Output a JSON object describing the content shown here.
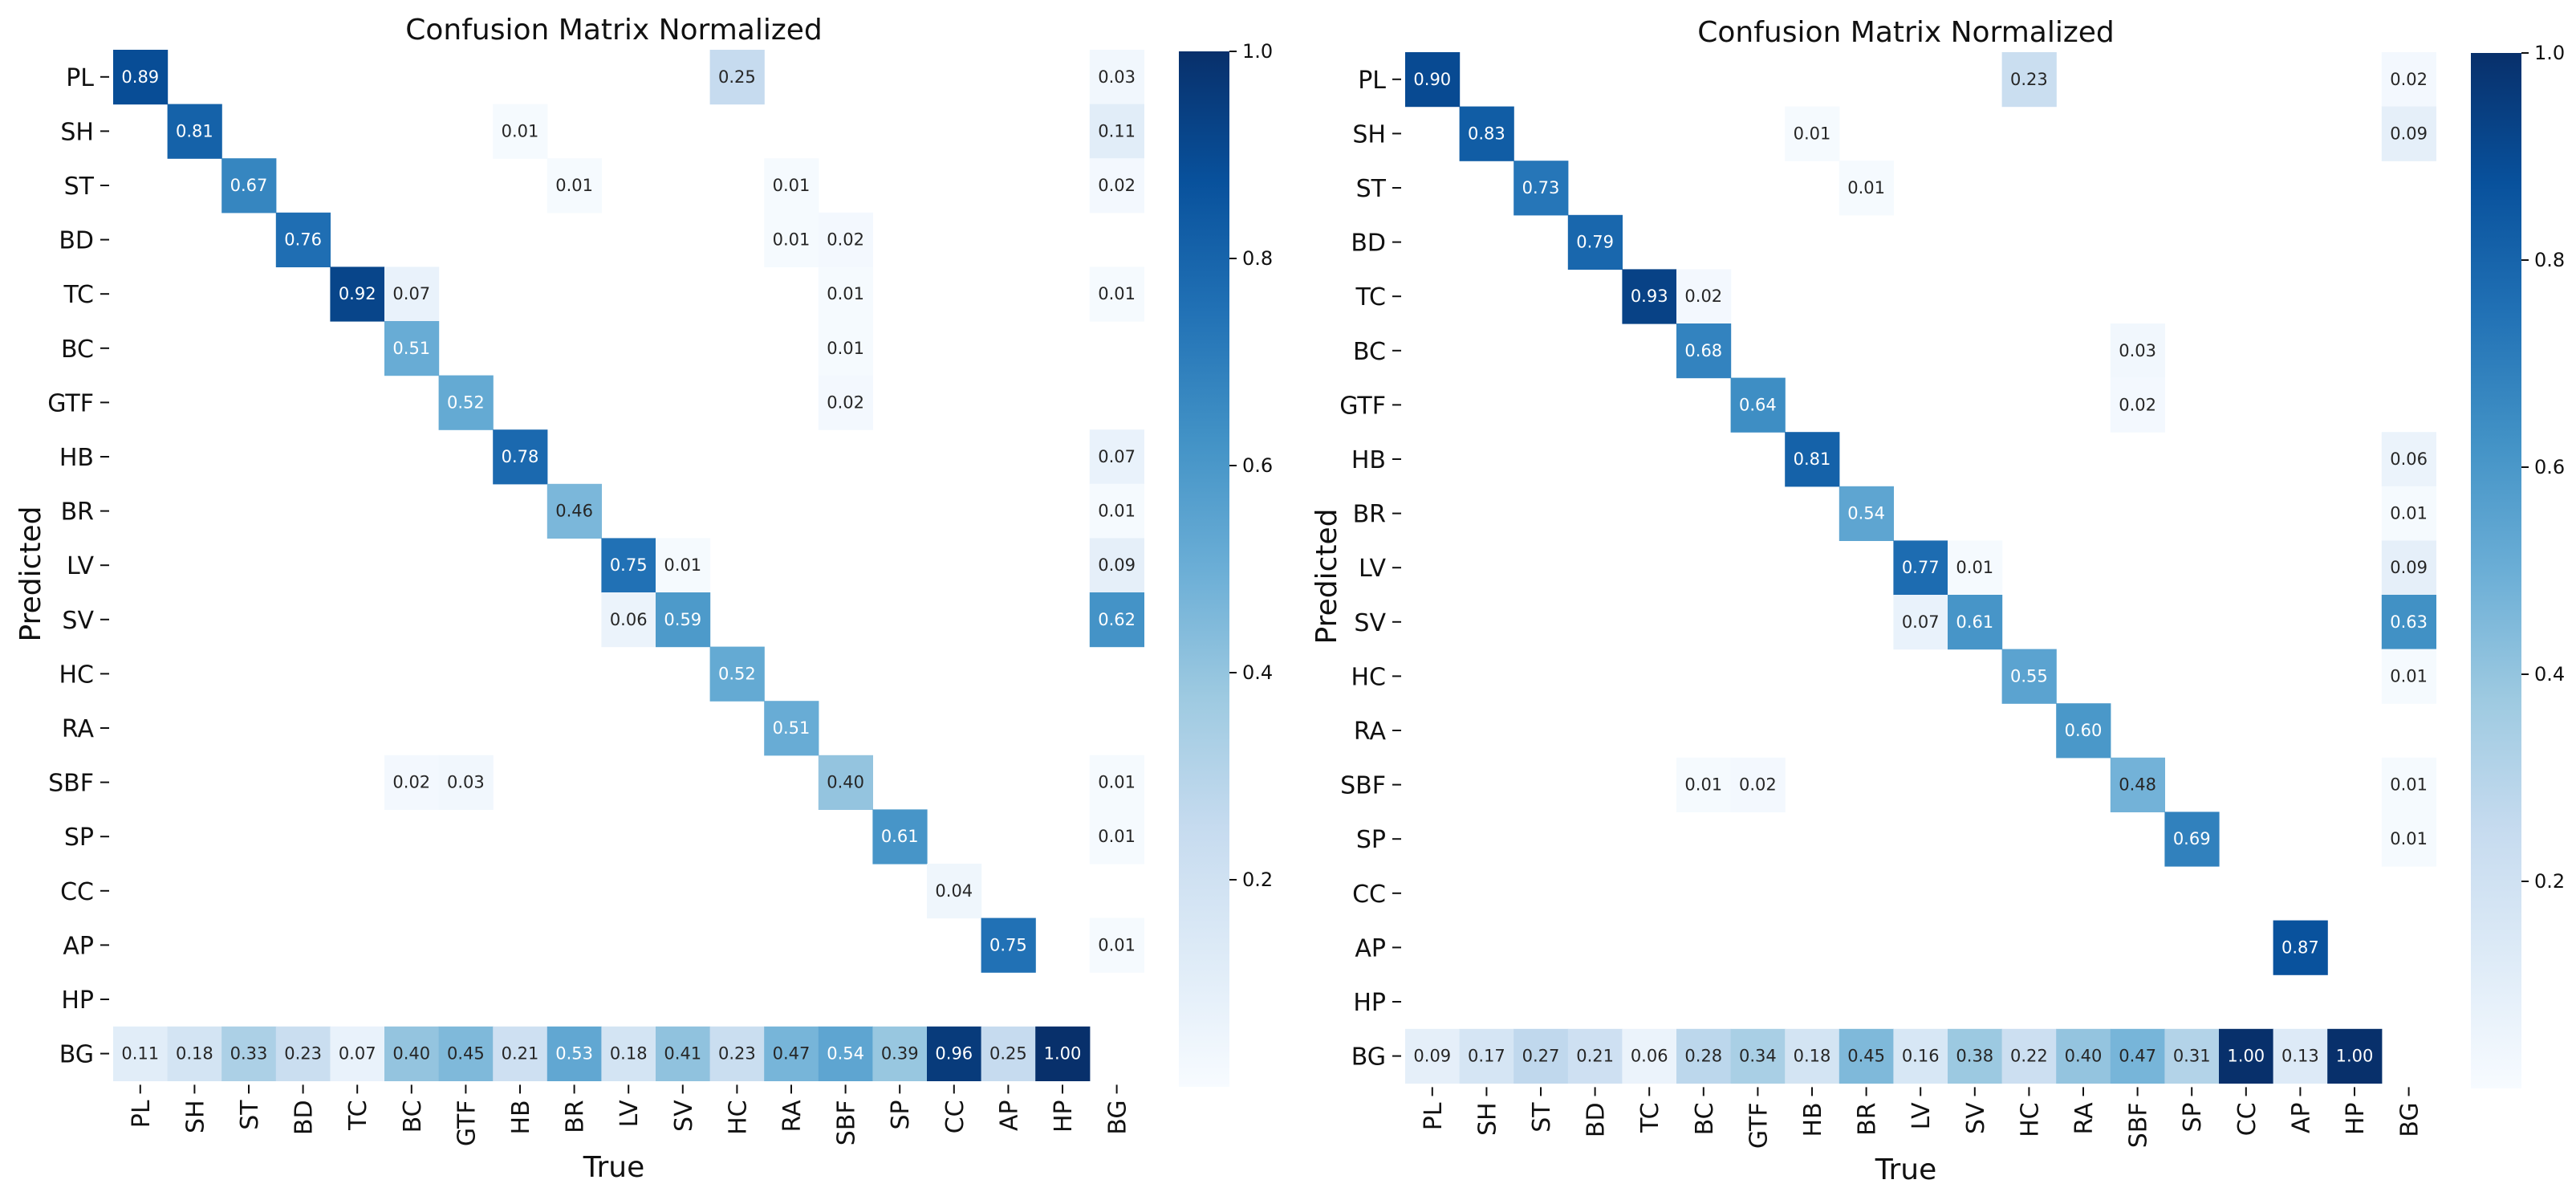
{
  "chart_data": [
    {
      "type": "heatmap",
      "title": "Confusion Matrix Normalized",
      "xlabel": "True",
      "ylabel": "Predicted",
      "classes": [
        "PL",
        "SH",
        "ST",
        "BD",
        "TC",
        "BC",
        "GTF",
        "HB",
        "BR",
        "LV",
        "SV",
        "HC",
        "RA",
        "SBF",
        "SP",
        "CC",
        "AP",
        "HP",
        "BG"
      ],
      "colorbar": {
        "min": 0,
        "max": 1,
        "ticks": [
          "0.2",
          "0.4",
          "0.6",
          "0.8",
          "1.0"
        ],
        "tick_values": [
          0.2,
          0.4,
          0.6,
          0.8,
          1.0
        ],
        "colormap": "Blues"
      },
      "cells": [
        {
          "r": 0,
          "c": 0,
          "v": 0.89,
          "t": "0.89"
        },
        {
          "r": 0,
          "c": 11,
          "v": 0.25,
          "t": "0.25"
        },
        {
          "r": 0,
          "c": 18,
          "v": 0.03,
          "t": "0.03"
        },
        {
          "r": 1,
          "c": 1,
          "v": 0.81,
          "t": "0.81"
        },
        {
          "r": 1,
          "c": 7,
          "v": 0.01,
          "t": "0.01"
        },
        {
          "r": 1,
          "c": 18,
          "v": 0.11,
          "t": "0.11"
        },
        {
          "r": 2,
          "c": 2,
          "v": 0.67,
          "t": "0.67"
        },
        {
          "r": 2,
          "c": 8,
          "v": 0.01,
          "t": "0.01"
        },
        {
          "r": 2,
          "c": 12,
          "v": 0.01,
          "t": "0.01"
        },
        {
          "r": 2,
          "c": 18,
          "v": 0.02,
          "t": "0.02"
        },
        {
          "r": 3,
          "c": 3,
          "v": 0.76,
          "t": "0.76"
        },
        {
          "r": 3,
          "c": 12,
          "v": 0.01,
          "t": "0.01"
        },
        {
          "r": 3,
          "c": 13,
          "v": 0.02,
          "t": "0.02"
        },
        {
          "r": 4,
          "c": 4,
          "v": 0.92,
          "t": "0.92"
        },
        {
          "r": 4,
          "c": 5,
          "v": 0.07,
          "t": "0.07"
        },
        {
          "r": 4,
          "c": 13,
          "v": 0.01,
          "t": "0.01"
        },
        {
          "r": 4,
          "c": 18,
          "v": 0.01,
          "t": "0.01"
        },
        {
          "r": 5,
          "c": 5,
          "v": 0.51,
          "t": "0.51"
        },
        {
          "r": 5,
          "c": 13,
          "v": 0.01,
          "t": "0.01"
        },
        {
          "r": 6,
          "c": 6,
          "v": 0.52,
          "t": "0.52"
        },
        {
          "r": 6,
          "c": 13,
          "v": 0.02,
          "t": "0.02"
        },
        {
          "r": 7,
          "c": 7,
          "v": 0.78,
          "t": "0.78"
        },
        {
          "r": 7,
          "c": 18,
          "v": 0.07,
          "t": "0.07"
        },
        {
          "r": 8,
          "c": 8,
          "v": 0.46,
          "t": "0.46"
        },
        {
          "r": 8,
          "c": 18,
          "v": 0.01,
          "t": "0.01"
        },
        {
          "r": 9,
          "c": 9,
          "v": 0.75,
          "t": "0.75"
        },
        {
          "r": 9,
          "c": 10,
          "v": 0.01,
          "t": "0.01"
        },
        {
          "r": 9,
          "c": 18,
          "v": 0.09,
          "t": "0.09"
        },
        {
          "r": 10,
          "c": 9,
          "v": 0.06,
          "t": "0.06"
        },
        {
          "r": 10,
          "c": 10,
          "v": 0.59,
          "t": "0.59"
        },
        {
          "r": 10,
          "c": 18,
          "v": 0.62,
          "t": "0.62"
        },
        {
          "r": 11,
          "c": 11,
          "v": 0.52,
          "t": "0.52"
        },
        {
          "r": 12,
          "c": 12,
          "v": 0.51,
          "t": "0.51"
        },
        {
          "r": 13,
          "c": 5,
          "v": 0.02,
          "t": "0.02"
        },
        {
          "r": 13,
          "c": 6,
          "v": 0.03,
          "t": "0.03"
        },
        {
          "r": 13,
          "c": 13,
          "v": 0.4,
          "t": "0.40"
        },
        {
          "r": 13,
          "c": 18,
          "v": 0.01,
          "t": "0.01"
        },
        {
          "r": 14,
          "c": 14,
          "v": 0.61,
          "t": "0.61"
        },
        {
          "r": 14,
          "c": 18,
          "v": 0.01,
          "t": "0.01"
        },
        {
          "r": 15,
          "c": 15,
          "v": 0.04,
          "t": "0.04"
        },
        {
          "r": 16,
          "c": 16,
          "v": 0.75,
          "t": "0.75"
        },
        {
          "r": 16,
          "c": 18,
          "v": 0.01,
          "t": "0.01"
        },
        {
          "r": 18,
          "c": 0,
          "v": 0.11,
          "t": "0.11"
        },
        {
          "r": 18,
          "c": 1,
          "v": 0.18,
          "t": "0.18"
        },
        {
          "r": 18,
          "c": 2,
          "v": 0.33,
          "t": "0.33"
        },
        {
          "r": 18,
          "c": 3,
          "v": 0.23,
          "t": "0.23"
        },
        {
          "r": 18,
          "c": 4,
          "v": 0.07,
          "t": "0.07"
        },
        {
          "r": 18,
          "c": 5,
          "v": 0.4,
          "t": "0.40"
        },
        {
          "r": 18,
          "c": 6,
          "v": 0.45,
          "t": "0.45"
        },
        {
          "r": 18,
          "c": 7,
          "v": 0.21,
          "t": "0.21"
        },
        {
          "r": 18,
          "c": 8,
          "v": 0.53,
          "t": "0.53"
        },
        {
          "r": 18,
          "c": 9,
          "v": 0.18,
          "t": "0.18"
        },
        {
          "r": 18,
          "c": 10,
          "v": 0.41,
          "t": "0.41"
        },
        {
          "r": 18,
          "c": 11,
          "v": 0.23,
          "t": "0.23"
        },
        {
          "r": 18,
          "c": 12,
          "v": 0.47,
          "t": "0.47"
        },
        {
          "r": 18,
          "c": 13,
          "v": 0.54,
          "t": "0.54"
        },
        {
          "r": 18,
          "c": 14,
          "v": 0.39,
          "t": "0.39"
        },
        {
          "r": 18,
          "c": 15,
          "v": 0.96,
          "t": "0.96"
        },
        {
          "r": 18,
          "c": 16,
          "v": 0.25,
          "t": "0.25"
        },
        {
          "r": 18,
          "c": 17,
          "v": 1.0,
          "t": "1.00"
        }
      ]
    },
    {
      "type": "heatmap",
      "title": "Confusion Matrix Normalized",
      "xlabel": "True",
      "ylabel": "Predicted",
      "classes": [
        "PL",
        "SH",
        "ST",
        "BD",
        "TC",
        "BC",
        "GTF",
        "HB",
        "BR",
        "LV",
        "SV",
        "HC",
        "RA",
        "SBF",
        "SP",
        "CC",
        "AP",
        "HP",
        "BG"
      ],
      "colorbar": {
        "min": 0,
        "max": 1,
        "ticks": [
          "0.2",
          "0.4",
          "0.6",
          "0.8",
          "1.0"
        ],
        "tick_values": [
          0.2,
          0.4,
          0.6,
          0.8,
          1.0
        ],
        "colormap": "Blues"
      },
      "cells": [
        {
          "r": 0,
          "c": 0,
          "v": 0.9,
          "t": "0.90"
        },
        {
          "r": 0,
          "c": 11,
          "v": 0.23,
          "t": "0.23"
        },
        {
          "r": 0,
          "c": 18,
          "v": 0.02,
          "t": "0.02"
        },
        {
          "r": 1,
          "c": 1,
          "v": 0.83,
          "t": "0.83"
        },
        {
          "r": 1,
          "c": 7,
          "v": 0.01,
          "t": "0.01"
        },
        {
          "r": 1,
          "c": 18,
          "v": 0.09,
          "t": "0.09"
        },
        {
          "r": 2,
          "c": 2,
          "v": 0.73,
          "t": "0.73"
        },
        {
          "r": 2,
          "c": 8,
          "v": 0.01,
          "t": "0.01"
        },
        {
          "r": 3,
          "c": 3,
          "v": 0.79,
          "t": "0.79"
        },
        {
          "r": 4,
          "c": 4,
          "v": 0.93,
          "t": "0.93"
        },
        {
          "r": 4,
          "c": 5,
          "v": 0.02,
          "t": "0.02"
        },
        {
          "r": 5,
          "c": 5,
          "v": 0.68,
          "t": "0.68"
        },
        {
          "r": 5,
          "c": 13,
          "v": 0.03,
          "t": "0.03"
        },
        {
          "r": 6,
          "c": 6,
          "v": 0.64,
          "t": "0.64"
        },
        {
          "r": 6,
          "c": 13,
          "v": 0.02,
          "t": "0.02"
        },
        {
          "r": 7,
          "c": 7,
          "v": 0.81,
          "t": "0.81"
        },
        {
          "r": 7,
          "c": 18,
          "v": 0.06,
          "t": "0.06"
        },
        {
          "r": 8,
          "c": 8,
          "v": 0.54,
          "t": "0.54"
        },
        {
          "r": 8,
          "c": 18,
          "v": 0.01,
          "t": "0.01"
        },
        {
          "r": 9,
          "c": 9,
          "v": 0.77,
          "t": "0.77"
        },
        {
          "r": 9,
          "c": 10,
          "v": 0.01,
          "t": "0.01"
        },
        {
          "r": 9,
          "c": 18,
          "v": 0.09,
          "t": "0.09"
        },
        {
          "r": 10,
          "c": 9,
          "v": 0.07,
          "t": "0.07"
        },
        {
          "r": 10,
          "c": 10,
          "v": 0.61,
          "t": "0.61"
        },
        {
          "r": 10,
          "c": 18,
          "v": 0.63,
          "t": "0.63"
        },
        {
          "r": 11,
          "c": 11,
          "v": 0.55,
          "t": "0.55"
        },
        {
          "r": 11,
          "c": 18,
          "v": 0.01,
          "t": "0.01"
        },
        {
          "r": 12,
          "c": 12,
          "v": 0.6,
          "t": "0.60"
        },
        {
          "r": 13,
          "c": 5,
          "v": 0.01,
          "t": "0.01"
        },
        {
          "r": 13,
          "c": 6,
          "v": 0.02,
          "t": "0.02"
        },
        {
          "r": 13,
          "c": 13,
          "v": 0.48,
          "t": "0.48"
        },
        {
          "r": 13,
          "c": 18,
          "v": 0.01,
          "t": "0.01"
        },
        {
          "r": 14,
          "c": 14,
          "v": 0.69,
          "t": "0.69"
        },
        {
          "r": 14,
          "c": 18,
          "v": 0.01,
          "t": "0.01"
        },
        {
          "r": 16,
          "c": 16,
          "v": 0.87,
          "t": "0.87"
        },
        {
          "r": 18,
          "c": 0,
          "v": 0.09,
          "t": "0.09"
        },
        {
          "r": 18,
          "c": 1,
          "v": 0.17,
          "t": "0.17"
        },
        {
          "r": 18,
          "c": 2,
          "v": 0.27,
          "t": "0.27"
        },
        {
          "r": 18,
          "c": 3,
          "v": 0.21,
          "t": "0.21"
        },
        {
          "r": 18,
          "c": 4,
          "v": 0.06,
          "t": "0.06"
        },
        {
          "r": 18,
          "c": 5,
          "v": 0.28,
          "t": "0.28"
        },
        {
          "r": 18,
          "c": 6,
          "v": 0.34,
          "t": "0.34"
        },
        {
          "r": 18,
          "c": 7,
          "v": 0.18,
          "t": "0.18"
        },
        {
          "r": 18,
          "c": 8,
          "v": 0.45,
          "t": "0.45"
        },
        {
          "r": 18,
          "c": 9,
          "v": 0.16,
          "t": "0.16"
        },
        {
          "r": 18,
          "c": 10,
          "v": 0.38,
          "t": "0.38"
        },
        {
          "r": 18,
          "c": 11,
          "v": 0.22,
          "t": "0.22"
        },
        {
          "r": 18,
          "c": 12,
          "v": 0.4,
          "t": "0.40"
        },
        {
          "r": 18,
          "c": 13,
          "v": 0.47,
          "t": "0.47"
        },
        {
          "r": 18,
          "c": 14,
          "v": 0.31,
          "t": "0.31"
        },
        {
          "r": 18,
          "c": 15,
          "v": 1.0,
          "t": "1.00"
        },
        {
          "r": 18,
          "c": 16,
          "v": 0.13,
          "t": "0.13"
        },
        {
          "r": 18,
          "c": 17,
          "v": 1.0,
          "t": "1.00"
        }
      ]
    }
  ]
}
